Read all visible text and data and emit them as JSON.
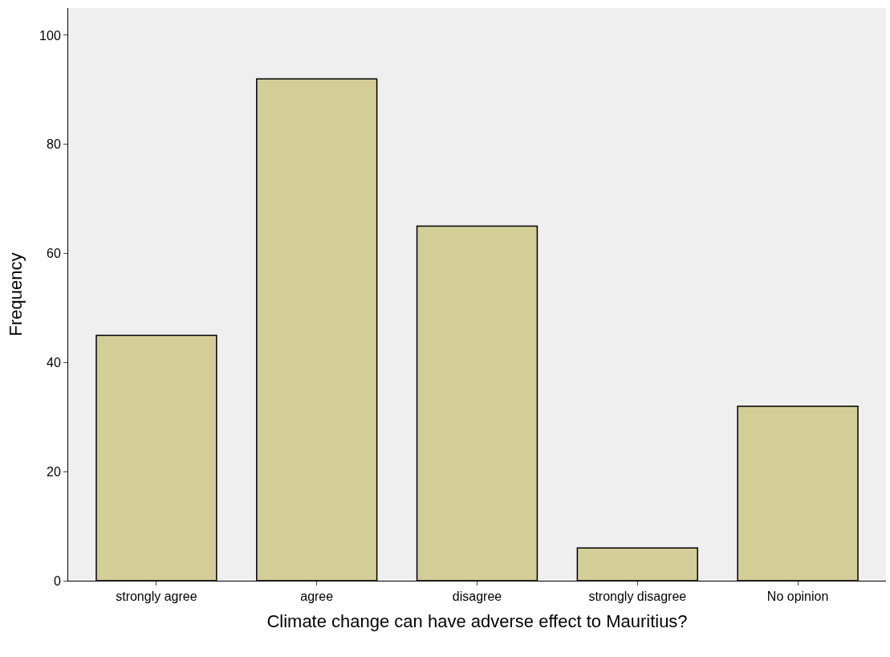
{
  "chart_data": {
    "type": "bar",
    "xlabel": "Climate change can have adverse effect to Mauritius?",
    "ylabel": "Frequency",
    "categories": [
      "strongly agree",
      "agree",
      "disagree",
      "strongly disagree",
      "No opinion"
    ],
    "values": [
      45,
      92,
      65,
      6,
      32
    ],
    "color": "#d3cd97",
    "ylim": [
      0,
      105
    ],
    "yticks": [
      0,
      20,
      40,
      60,
      80,
      100
    ],
    "grid": false,
    "legend": false
  }
}
